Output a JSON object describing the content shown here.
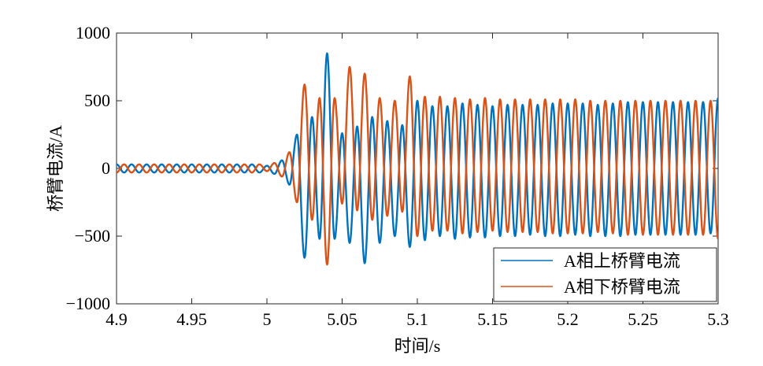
{
  "chart_data": {
    "type": "line",
    "title": "",
    "xlabel": "时间/s",
    "ylabel": "桥臂电流/A",
    "xlim": [
      4.9,
      5.3
    ],
    "ylim": [
      -1000,
      1000
    ],
    "x_ticks": [
      4.9,
      4.95,
      5.0,
      5.05,
      5.1,
      5.15,
      5.2,
      5.25,
      5.3
    ],
    "x_tick_labels": [
      "4.9",
      "4.95",
      "5",
      "5.05",
      "5.1",
      "5.15",
      "5.2",
      "5.25",
      "5.3"
    ],
    "y_ticks": [
      -1000,
      -500,
      0,
      500,
      1000
    ],
    "y_tick_labels": [
      "−1000",
      "−500",
      "0",
      "500",
      "1000"
    ],
    "grid": false,
    "legend_position": "bottom-right",
    "series": [
      {
        "name": "A相上桥臂电流",
        "color": "#0072BD",
        "x": [
          4.9,
          4.905,
          4.91,
          4.915,
          4.92,
          4.925,
          4.93,
          4.935,
          4.94,
          4.945,
          4.95,
          4.955,
          4.96,
          4.965,
          4.97,
          4.975,
          4.98,
          4.985,
          4.99,
          4.995,
          5.0,
          5.005,
          5.01,
          5.015,
          5.02,
          5.025,
          5.03,
          5.035,
          5.04,
          5.045,
          5.05,
          5.055,
          5.06,
          5.065,
          5.07,
          5.075,
          5.08,
          5.085,
          5.09,
          5.095,
          5.1,
          5.105,
          5.11,
          5.115,
          5.12,
          5.125,
          5.13,
          5.135,
          5.14,
          5.145,
          5.15,
          5.155,
          5.16,
          5.165,
          5.17,
          5.175,
          5.18,
          5.185,
          5.19,
          5.195,
          5.2,
          5.205,
          5.21,
          5.215,
          5.22,
          5.225,
          5.23,
          5.235,
          5.24,
          5.245,
          5.25,
          5.255,
          5.26,
          5.265,
          5.27,
          5.275,
          5.28,
          5.285,
          5.29,
          5.295,
          5.3
        ],
        "y": [
          30,
          -30,
          30,
          -30,
          30,
          -30,
          30,
          -30,
          30,
          -30,
          30,
          -30,
          30,
          -30,
          30,
          -30,
          30,
          -30,
          30,
          -30,
          20,
          -40,
          60,
          -120,
          250,
          -660,
          380,
          -520,
          850,
          -520,
          260,
          -550,
          310,
          -700,
          380,
          -550,
          350,
          -500,
          320,
          -580,
          500,
          -530,
          460,
          -500,
          460,
          -520,
          480,
          -510,
          470,
          -510,
          460,
          -500,
          470,
          -500,
          470,
          -490,
          470,
          -500,
          480,
          -500,
          480,
          -490,
          480,
          -500,
          470,
          -500,
          480,
          -500,
          490,
          -490,
          490,
          -490,
          490,
          -490,
          490,
          -490,
          490,
          -490,
          490,
          -480,
          520
        ]
      },
      {
        "name": "A相下桥臂电流",
        "color": "#D95319",
        "x": [
          4.9,
          4.905,
          4.91,
          4.915,
          4.92,
          4.925,
          4.93,
          4.935,
          4.94,
          4.945,
          4.95,
          4.955,
          4.96,
          4.965,
          4.97,
          4.975,
          4.98,
          4.985,
          4.99,
          4.995,
          5.0,
          5.005,
          5.01,
          5.015,
          5.02,
          5.025,
          5.03,
          5.035,
          5.04,
          5.045,
          5.05,
          5.055,
          5.06,
          5.065,
          5.07,
          5.075,
          5.08,
          5.085,
          5.09,
          5.095,
          5.1,
          5.105,
          5.11,
          5.115,
          5.12,
          5.125,
          5.13,
          5.135,
          5.14,
          5.145,
          5.15,
          5.155,
          5.16,
          5.165,
          5.17,
          5.175,
          5.18,
          5.185,
          5.19,
          5.195,
          5.2,
          5.205,
          5.21,
          5.215,
          5.22,
          5.225,
          5.23,
          5.235,
          5.24,
          5.245,
          5.25,
          5.255,
          5.26,
          5.265,
          5.27,
          5.275,
          5.28,
          5.285,
          5.29,
          5.295,
          5.3
        ],
        "y": [
          -30,
          30,
          -30,
          30,
          -30,
          30,
          -30,
          30,
          -30,
          30,
          -30,
          30,
          -30,
          30,
          -30,
          30,
          -30,
          30,
          -30,
          30,
          -20,
          40,
          -60,
          120,
          -250,
          620,
          -380,
          520,
          -710,
          520,
          -260,
          750,
          -310,
          700,
          -380,
          520,
          -350,
          500,
          -320,
          680,
          -500,
          530,
          -460,
          530,
          -460,
          520,
          -480,
          510,
          -470,
          520,
          -460,
          510,
          -470,
          510,
          -470,
          510,
          -470,
          510,
          -480,
          510,
          -480,
          510,
          -480,
          500,
          -470,
          500,
          -480,
          500,
          -490,
          500,
          -490,
          500,
          -490,
          500,
          -490,
          500,
          -490,
          500,
          -490,
          500,
          -520
        ]
      }
    ]
  }
}
